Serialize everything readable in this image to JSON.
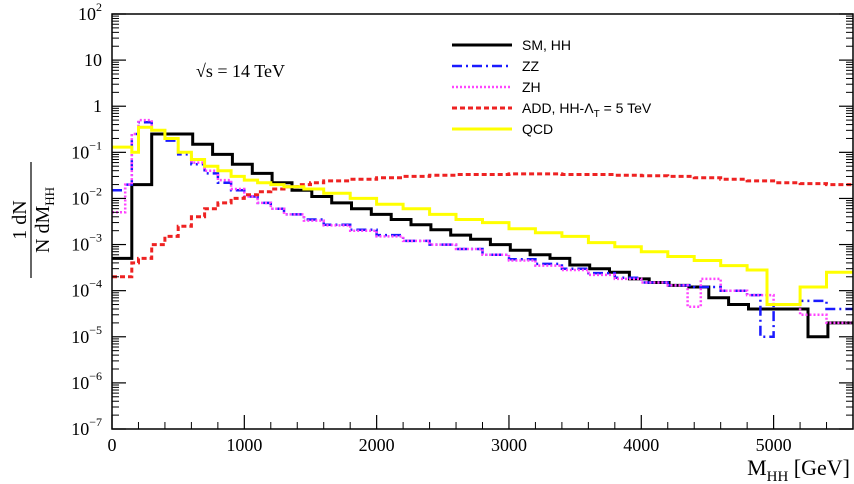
{
  "chart_data": {
    "type": "line",
    "annotation": "√s = 14 TeV",
    "annotation_sqrt": "√",
    "annotation_rest": "s = 14 TeV",
    "xlabel": "M",
    "xlabel_sub": "HH",
    "xlabel_unit": " [GeV]",
    "ylabel_numerator": "1 dN",
    "ylabel_denominator": "N dM",
    "ylabel_sub": "HH",
    "xlim": [
      0,
      5600
    ],
    "ylim": [
      1e-07,
      100
    ],
    "yscale": "log",
    "grid": false,
    "legend_position": "top-right",
    "x_ticks": [
      0,
      1000,
      2000,
      3000,
      4000,
      5000
    ],
    "x_tick_labels": [
      "0",
      "1000",
      "2000",
      "3000",
      "4000",
      "5000"
    ],
    "y_ticks": [
      -7,
      -6,
      -5,
      -4,
      -3,
      -2,
      -1,
      0,
      1,
      2
    ],
    "y_tick_labels": [
      {
        "base": "10",
        "exp": "−7"
      },
      {
        "base": "10",
        "exp": "−6"
      },
      {
        "base": "10",
        "exp": "−5"
      },
      {
        "base": "10",
        "exp": "−4"
      },
      {
        "base": "10",
        "exp": "−3"
      },
      {
        "base": "10",
        "exp": "−2"
      },
      {
        "base": "10",
        "exp": "−1"
      },
      {
        "base": "1",
        "exp": ""
      },
      {
        "base": "10",
        "exp": ""
      },
      {
        "base": "10",
        "exp": "2"
      }
    ],
    "series": [
      {
        "name": "SM, HH",
        "legend_main": "SM, HH",
        "legend_sub": "",
        "legend_tail": "",
        "color": "#000000",
        "dash": "",
        "width": 3,
        "edges": [
          0,
          150,
          300,
          460,
          610,
          760,
          910,
          1060,
          1210,
          1360,
          1510,
          1660,
          1810,
          1960,
          2110,
          2260,
          2410,
          2560,
          2710,
          2860,
          3010,
          3160,
          3310,
          3460,
          3610,
          3760,
          3910,
          4060,
          4210,
          4360,
          4510,
          4660,
          4810,
          4960,
          5110,
          5260,
          5410,
          5600
        ],
        "values": [
          0.0005,
          0.02,
          0.25,
          0.25,
          0.15,
          0.09,
          0.055,
          0.035,
          0.022,
          0.015,
          0.011,
          0.008,
          0.006,
          0.0045,
          0.0035,
          0.0027,
          0.0021,
          0.0016,
          0.0013,
          0.001,
          0.00075,
          0.0006,
          0.0005,
          0.00036,
          0.0003,
          0.00025,
          0.00018,
          0.00015,
          0.00013,
          0.00012,
          7e-05,
          5e-05,
          4e-05,
          4e-05,
          4e-05,
          1e-05,
          2e-05
        ]
      },
      {
        "name": "ZZ",
        "legend_main": "ZZ",
        "legend_sub": "",
        "legend_tail": "",
        "color": "#1a1aff",
        "dash": "10,4,2,4",
        "width": 2.5,
        "edges": [
          0,
          100,
          150,
          200,
          300,
          400,
          500,
          600,
          700,
          800,
          900,
          1000,
          1100,
          1200,
          1300,
          1450,
          1600,
          1800,
          2000,
          2200,
          2400,
          2600,
          2800,
          3000,
          3200,
          3400,
          3600,
          3800,
          4000,
          4200,
          4400,
          4600,
          4800,
          4900,
          5000,
          5200,
          5400,
          5600
        ],
        "values": [
          0.015,
          0.02,
          0.25,
          0.45,
          0.3,
          0.18,
          0.09,
          0.055,
          0.035,
          0.022,
          0.015,
          0.011,
          0.008,
          0.006,
          0.0045,
          0.0035,
          0.0027,
          0.0021,
          0.0016,
          0.0012,
          0.001,
          0.0008,
          0.0006,
          0.00048,
          0.00038,
          0.0003,
          0.00024,
          0.00019,
          0.00015,
          0.00013,
          0.00012,
          0.0001,
          8e-05,
          1e-05,
          5e-05,
          6e-05,
          4e-05
        ]
      },
      {
        "name": "ZH",
        "legend_main": "ZH",
        "legend_sub": "",
        "legend_tail": "",
        "color": "#ff44ff",
        "dash": "2,2",
        "width": 2.5,
        "edges": [
          0,
          100,
          150,
          200,
          300,
          400,
          500,
          600,
          700,
          800,
          900,
          1000,
          1100,
          1200,
          1300,
          1450,
          1600,
          1800,
          2000,
          2200,
          2400,
          2600,
          2800,
          3000,
          3200,
          3400,
          3600,
          3800,
          4000,
          4200,
          4350,
          4450,
          4600,
          4800,
          5000,
          5200,
          5400,
          5600
        ],
        "values": [
          0.005,
          0.02,
          0.25,
          0.5,
          0.3,
          0.2,
          0.1,
          0.06,
          0.04,
          0.025,
          0.016,
          0.011,
          0.008,
          0.006,
          0.0045,
          0.0033,
          0.0026,
          0.002,
          0.0015,
          0.0012,
          0.001,
          0.0008,
          0.0006,
          0.00045,
          0.00035,
          0.00028,
          0.00022,
          0.00018,
          0.00015,
          0.00013,
          4.5e-05,
          0.00018,
          0.0001,
          8e-05,
          5e-05,
          3e-05,
          2e-05
        ]
      },
      {
        "name": "ADD, HH-ΛT = 5 TeV",
        "legend_main": "ADD, HH-Λ",
        "legend_sub": "T",
        "legend_tail": " = 5 TeV",
        "color": "#ee2222",
        "dash": "5,3",
        "width": 3,
        "edges": [
          0,
          150,
          200,
          300,
          400,
          500,
          600,
          700,
          800,
          900,
          1000,
          1100,
          1200,
          1300,
          1400,
          1500,
          1600,
          1800,
          2000,
          2200,
          2400,
          2600,
          2800,
          3000,
          3200,
          3400,
          3600,
          3800,
          4000,
          4200,
          4400,
          4600,
          4800,
          5000,
          5200,
          5400,
          5600
        ],
        "values": [
          0.0002,
          0.0004,
          0.0005,
          0.001,
          0.0015,
          0.0025,
          0.004,
          0.006,
          0.008,
          0.01,
          0.012,
          0.014,
          0.016,
          0.018,
          0.02,
          0.022,
          0.024,
          0.026,
          0.028,
          0.03,
          0.032,
          0.033,
          0.033,
          0.034,
          0.034,
          0.033,
          0.033,
          0.032,
          0.031,
          0.03,
          0.028,
          0.026,
          0.024,
          0.022,
          0.021,
          0.02
        ]
      },
      {
        "name": "QCD",
        "legend_main": "QCD",
        "legend_sub": "",
        "legend_tail": "",
        "color": "#ffff00",
        "dash": "",
        "width": 3,
        "edges": [
          0,
          150,
          200,
          300,
          400,
          500,
          600,
          700,
          800,
          900,
          1000,
          1100,
          1200,
          1300,
          1450,
          1600,
          1800,
          2000,
          2200,
          2400,
          2600,
          2800,
          3000,
          3200,
          3400,
          3600,
          3800,
          4000,
          4200,
          4400,
          4600,
          4800,
          4950,
          5200,
          5400,
          5600
        ],
        "values": [
          0.13,
          0.1,
          0.35,
          0.3,
          0.2,
          0.1,
          0.07,
          0.05,
          0.04,
          0.03,
          0.025,
          0.022,
          0.02,
          0.018,
          0.016,
          0.013,
          0.01,
          0.0075,
          0.006,
          0.0045,
          0.0035,
          0.003,
          0.0022,
          0.0018,
          0.0015,
          0.0011,
          0.0009,
          0.0007,
          0.00055,
          0.00045,
          0.00035,
          0.00028,
          5e-05,
          0.00012,
          0.00025
        ]
      }
    ]
  }
}
